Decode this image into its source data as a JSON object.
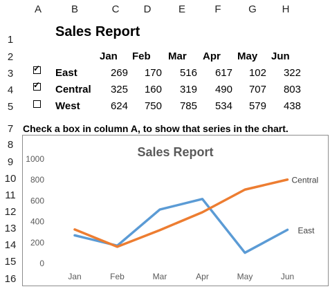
{
  "columns": [
    "A",
    "B",
    "C",
    "D",
    "E",
    "F",
    "G",
    "H"
  ],
  "rows": [
    "1",
    "2",
    "3",
    "4",
    "5",
    "7",
    "8",
    "9",
    "10",
    "11",
    "12",
    "13",
    "14",
    "15",
    "16"
  ],
  "report_title": "Sales Report",
  "months": [
    "Jan",
    "Feb",
    "Mar",
    "Apr",
    "May",
    "Jun"
  ],
  "series_rows": [
    {
      "name": "East",
      "checked": true,
      "values": [
        269,
        170,
        516,
        617,
        102,
        322
      ]
    },
    {
      "name": "Central",
      "checked": true,
      "values": [
        325,
        160,
        319,
        490,
        707,
        803
      ]
    },
    {
      "name": "West",
      "checked": false,
      "values": [
        624,
        750,
        785,
        534,
        579,
        438
      ]
    }
  ],
  "instruction": "Check a box in column A, to show that series in the chart.",
  "chart_data": {
    "type": "line",
    "title": "Sales Report",
    "categories": [
      "Jan",
      "Feb",
      "Mar",
      "Apr",
      "May",
      "Jun"
    ],
    "ylim": [
      0,
      1000
    ],
    "yticks": [
      "0",
      "200",
      "400",
      "600",
      "800",
      "1000"
    ],
    "grid": false,
    "legend": "series labels at right end of lines",
    "series": [
      {
        "name": "East",
        "values": [
          269,
          170,
          516,
          617,
          102,
          322
        ],
        "color": "#5B9BD5"
      },
      {
        "name": "Central",
        "values": [
          325,
          160,
          319,
          490,
          707,
          803
        ],
        "color": "#ED7D31"
      }
    ]
  }
}
